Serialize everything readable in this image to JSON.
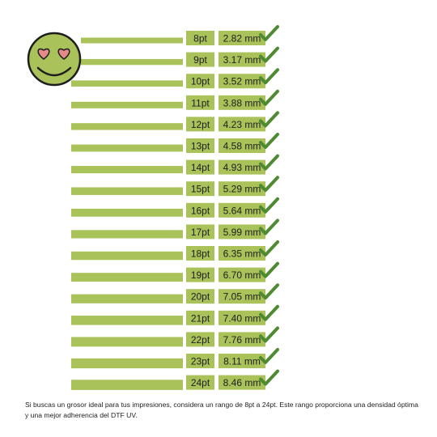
{
  "colors": {
    "accent": "#a9c25a",
    "check": "#4e8a30",
    "label_text": "#1e1e1e",
    "face": "#a9c25a",
    "face_outline": "#1e1e1e",
    "eyes": "#e58a8a"
  },
  "icons": {
    "face": "heart-eyes-smiley-icon",
    "check": "checkmark-icon"
  },
  "rows": [
    {
      "pt": "8pt",
      "mm": "2.82 mm"
    },
    {
      "pt": "9pt",
      "mm": "3.17 mm"
    },
    {
      "pt": "10pt",
      "mm": "3.52 mm"
    },
    {
      "pt": "11pt",
      "mm": "3.88 mm"
    },
    {
      "pt": "12pt",
      "mm": "4.23 mm"
    },
    {
      "pt": "13pt",
      "mm": "4.58 mm"
    },
    {
      "pt": "14pt",
      "mm": "4.93 mm"
    },
    {
      "pt": "15pt",
      "mm": "5.29 mm"
    },
    {
      "pt": "16pt",
      "mm": "5.64 mm"
    },
    {
      "pt": "17pt",
      "mm": "5.99 mm"
    },
    {
      "pt": "18pt",
      "mm": "6.35 mm"
    },
    {
      "pt": "19pt",
      "mm": "6.70 mm"
    },
    {
      "pt": "20pt",
      "mm": "7.05 mm"
    },
    {
      "pt": "21pt",
      "mm": "7.40 mm"
    },
    {
      "pt": "22pt",
      "mm": "7.76 mm"
    },
    {
      "pt": "23pt",
      "mm": "8.11 mm"
    },
    {
      "pt": "24pt",
      "mm": "8.46 mm"
    }
  ],
  "caption": "Si buscas un grosor ideal para tus impresiones, considera un rango de 8pt a 24pt. Este rango proporciona una densidad óptima y una mejor adherencia del DTF UV."
}
